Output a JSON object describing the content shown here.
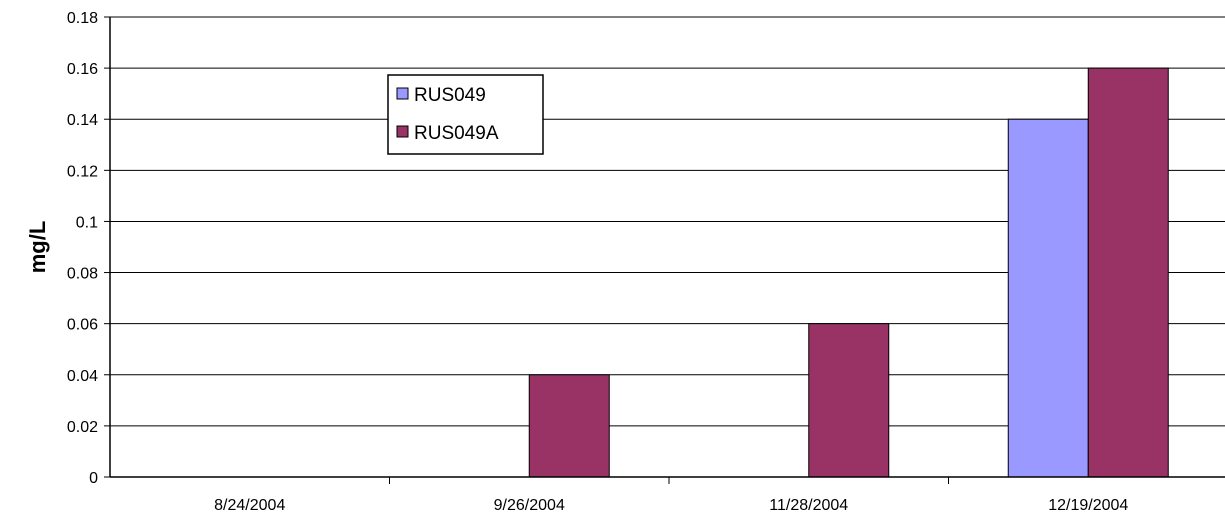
{
  "chart_data": {
    "type": "bar",
    "title": "",
    "xlabel": "",
    "ylabel": "mg/L",
    "categories": [
      "8/24/2004",
      "9/26/2004",
      "11/28/2004",
      "12/19/2004"
    ],
    "series": [
      {
        "name": "RUS049",
        "values": [
          0,
          0,
          0,
          0.14
        ],
        "color": "#9999ff"
      },
      {
        "name": "RUS049A",
        "values": [
          0,
          0.04,
          0.06,
          0.16
        ],
        "color": "#993366"
      }
    ],
    "ylim": [
      0,
      0.18
    ],
    "yticks": [
      "0",
      "0.02",
      "0.04",
      "0.06",
      "0.08",
      "0.1",
      "0.12",
      "0.14",
      "0.16",
      "0.18"
    ],
    "grid": true,
    "legend_position": "top-center-left"
  }
}
